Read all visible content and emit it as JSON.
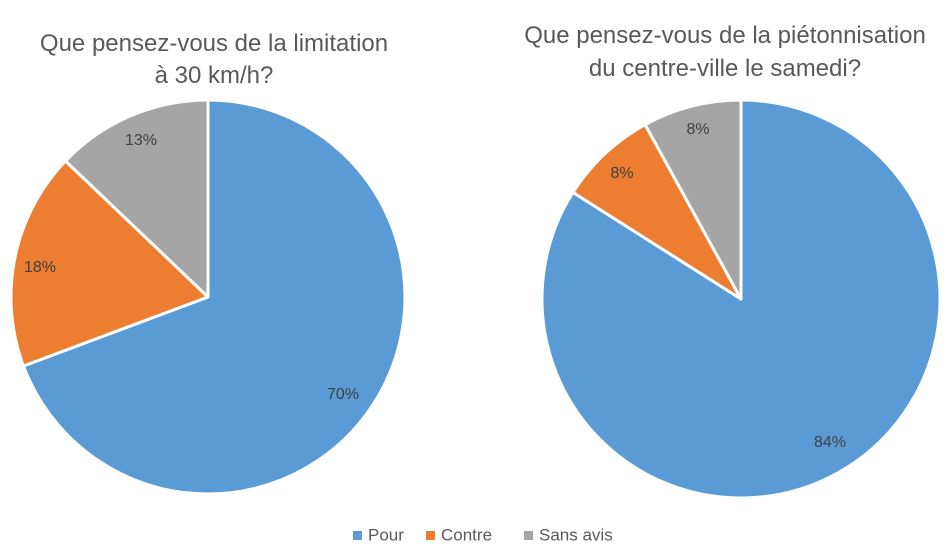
{
  "chart_data": [
    {
      "type": "pie",
      "title_lines": [
        "Que pensez-vous de la limitation",
        "à 30 km/h?"
      ],
      "categories": [
        "Pour",
        "Contre",
        "Sans avis"
      ],
      "values": [
        70,
        18,
        13
      ],
      "labels": [
        "70%",
        "18%",
        "13%"
      ],
      "colors": [
        "#5B9BD5",
        "#ED7D31",
        "#A5A5A5"
      ]
    },
    {
      "type": "pie",
      "title_lines": [
        "Que pensez-vous de la piétonnisation",
        "du centre-ville le samedi?"
      ],
      "categories": [
        "Pour",
        "Contre",
        "Sans avis"
      ],
      "values": [
        84,
        8,
        8
      ],
      "labels": [
        "84%",
        "8%",
        "8%"
      ],
      "colors": [
        "#5B9BD5",
        "#ED7D31",
        "#A5A5A5"
      ]
    }
  ],
  "legend": {
    "placement": "bottom",
    "items": [
      {
        "label": "Pour",
        "color": "#5B9BD5"
      },
      {
        "label": "Contre",
        "color": "#ED7D31"
      },
      {
        "label": "Sans avis",
        "color": "#A5A5A5"
      }
    ]
  }
}
